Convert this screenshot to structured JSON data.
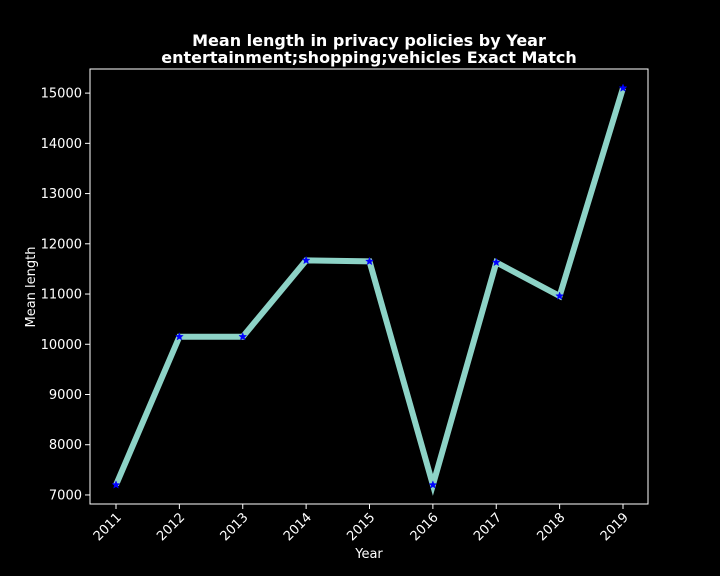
{
  "chart_data": {
    "type": "line",
    "title": "Mean length in privacy policies by Year",
    "subtitle": "entertainment;shopping;vehicles Exact Match",
    "xlabel": "Year",
    "ylabel": "Mean length",
    "categories": [
      "2011",
      "2012",
      "2013",
      "2014",
      "2015",
      "2016",
      "2017",
      "2018",
      "2019"
    ],
    "series": [
      {
        "values": [
          7200,
          10150,
          10150,
          11670,
          11650,
          7200,
          11630,
          10960,
          15100
        ],
        "line_color": "#8dd3c7",
        "marker_color": "#0000ff",
        "marker": "star"
      }
    ],
    "yticks": [
      7000,
      8000,
      9000,
      10000,
      11000,
      12000,
      13000,
      14000,
      15000
    ],
    "ylim": [
      6820,
      15480
    ],
    "grid": false,
    "legend": "none",
    "background": "#000000",
    "text_color": "#ffffff",
    "axis_color": "#ffffff"
  }
}
